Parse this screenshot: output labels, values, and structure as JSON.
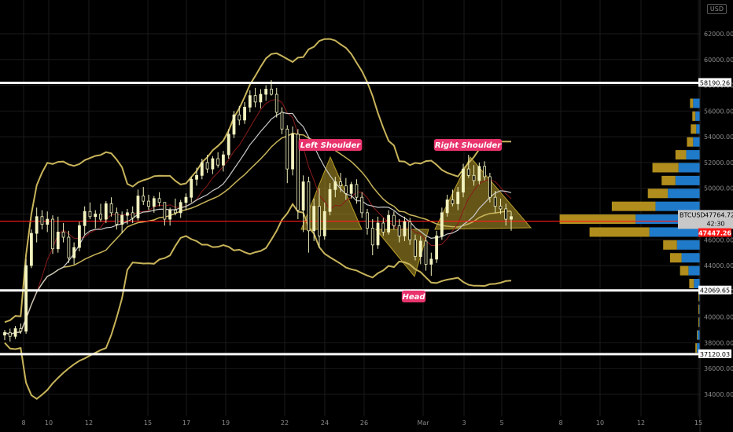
{
  "symbol": "BTCUSD",
  "currency_badge": "USD",
  "colors": {
    "background": "#000000",
    "candle": "#f3f3c0",
    "bollinger": "#c8b45a",
    "ma_fast": "#8b1a1a",
    "ma_slow": "#c8c8c8",
    "horizontal_level": "#ffffff",
    "current_price_line": "#ff1a1a",
    "pattern_fill": "#b89c2a",
    "annotation_bg": "#e8336d",
    "vp_blue": "#1f7ac9",
    "vp_gold": "#b08d1c"
  },
  "chart_data": {
    "type": "candlestick",
    "symbol": "BTCUSD",
    "ylim": [
      33000,
      63500
    ],
    "y_ticks": [
      "34000.00",
      "36000.00",
      "38000.00",
      "40000.00",
      "42000.00",
      "44000.00",
      "46000.00",
      "48000.00",
      "50000.00",
      "52000.00",
      "54000.00",
      "56000.00",
      "58000.00",
      "60000.00",
      "62000.00"
    ],
    "x_ticks": [
      "8",
      "10",
      "12",
      "15",
      "17",
      "19",
      "22",
      "24",
      "26",
      "Mar",
      "3",
      "5",
      "8",
      "10",
      "12",
      "15"
    ],
    "horizontal_levels": [
      {
        "price": 58190.26,
        "label": "58190.26"
      },
      {
        "price": 42069.65,
        "label": "42069.65"
      },
      {
        "price": 37120.03,
        "label": "37120.03"
      }
    ],
    "current_price": {
      "price": 47764.72,
      "label": "47764.72",
      "countdown": "42:30",
      "symbol": "BTCUSD"
    },
    "red_level": {
      "price": 47447.26,
      "label": "47447.26"
    },
    "annotations": [
      {
        "text": "Left Shoulder"
      },
      {
        "text": "Head"
      },
      {
        "text": "Right Shoulder"
      }
    ],
    "candles": [
      [
        38600,
        39000,
        38200,
        38800
      ],
      [
        38800,
        39100,
        38100,
        38500
      ],
      [
        38500,
        39300,
        38300,
        39100
      ],
      [
        39100,
        39500,
        38700,
        38900
      ],
      [
        38900,
        44500,
        38700,
        44000
      ],
      [
        44000,
        46800,
        43800,
        46500
      ],
      [
        46500,
        48500,
        45800,
        47800
      ],
      [
        47800,
        48300,
        46800,
        47200
      ],
      [
        47200,
        48200,
        46600,
        47600
      ],
      [
        47600,
        47900,
        44900,
        45300
      ],
      [
        45300,
        47800,
        45000,
        46600
      ],
      [
        46600,
        47300,
        45800,
        46200
      ],
      [
        46200,
        46700,
        44200,
        44600
      ],
      [
        44600,
        45800,
        44100,
        45400
      ],
      [
        45400,
        47400,
        45100,
        47100
      ],
      [
        47100,
        48600,
        46400,
        48200
      ],
      [
        48200,
        48900,
        47600,
        47800
      ],
      [
        47800,
        48300,
        46900,
        48000
      ],
      [
        48000,
        48800,
        47400,
        47600
      ],
      [
        47600,
        49000,
        47300,
        48800
      ],
      [
        48800,
        49300,
        47800,
        48100
      ],
      [
        48100,
        48500,
        46800,
        47200
      ],
      [
        47200,
        48200,
        46500,
        47900
      ],
      [
        47900,
        48400,
        47200,
        48100
      ],
      [
        48100,
        48600,
        47300,
        47700
      ],
      [
        47700,
        49900,
        47500,
        49400
      ],
      [
        49400,
        50100,
        48700,
        49000
      ],
      [
        49000,
        49500,
        48300,
        48600
      ],
      [
        48600,
        49400,
        48100,
        49200
      ],
      [
        49200,
        49700,
        48600,
        48900
      ],
      [
        48900,
        48600,
        47100,
        47600
      ],
      [
        47600,
        48500,
        47100,
        48300
      ],
      [
        48300,
        49200,
        47900,
        48100
      ],
      [
        48100,
        49100,
        47700,
        48900
      ],
      [
        48900,
        49600,
        48300,
        49300
      ],
      [
        49300,
        50900,
        48900,
        50700
      ],
      [
        50700,
        51600,
        50200,
        51000
      ],
      [
        51000,
        52300,
        50700,
        52000
      ],
      [
        52000,
        52600,
        51200,
        51500
      ],
      [
        51500,
        52500,
        51100,
        52300
      ],
      [
        52300,
        52800,
        51600,
        51800
      ],
      [
        51800,
        52900,
        51300,
        52600
      ],
      [
        52600,
        54600,
        52300,
        54200
      ],
      [
        54200,
        56000,
        53900,
        55700
      ],
      [
        55700,
        56400,
        54900,
        55300
      ],
      [
        55300,
        56700,
        55000,
        56300
      ],
      [
        56300,
        57600,
        55900,
        57200
      ],
      [
        57200,
        57800,
        56300,
        56700
      ],
      [
        56700,
        57700,
        56200,
        57300
      ],
      [
        57300,
        58000,
        56800,
        57700
      ],
      [
        57700,
        58400,
        57200,
        57300
      ],
      [
        57300,
        57800,
        55500,
        55900
      ],
      [
        55900,
        56300,
        54200,
        54600
      ],
      [
        54600,
        54900,
        50400,
        51500
      ],
      [
        51500,
        54800,
        51000,
        54200
      ],
      [
        54200,
        54600,
        47600,
        48300
      ],
      [
        48300,
        51000,
        46600,
        50500
      ],
      [
        50500,
        50900,
        45000,
        46700
      ],
      [
        46700,
        49200,
        45900,
        48600
      ],
      [
        48600,
        50000,
        45400,
        46300
      ],
      [
        46300,
        48900,
        46000,
        48200
      ],
      [
        48200,
        50400,
        47900,
        49900
      ],
      [
        49900,
        50900,
        49300,
        50500
      ],
      [
        50500,
        51200,
        49700,
        50200
      ],
      [
        50200,
        50800,
        49100,
        49600
      ],
      [
        49600,
        50500,
        49200,
        50300
      ],
      [
        50300,
        50700,
        48800,
        49300
      ],
      [
        49300,
        49700,
        47700,
        48100
      ],
      [
        48100,
        48400,
        46400,
        46900
      ],
      [
        46900,
        47600,
        44800,
        45600
      ],
      [
        45600,
        47800,
        45300,
        47300
      ],
      [
        47300,
        47700,
        46300,
        46600
      ],
      [
        46600,
        48300,
        46400,
        47900
      ],
      [
        47900,
        48200,
        46800,
        47100
      ],
      [
        47100,
        47600,
        45800,
        46300
      ],
      [
        46300,
        47800,
        45900,
        47400
      ],
      [
        47400,
        47700,
        45600,
        46000
      ],
      [
        46000,
        46400,
        44400,
        44700
      ],
      [
        44700,
        46300,
        44100,
        45900
      ],
      [
        45900,
        46200,
        43600,
        44100
      ],
      [
        44100,
        45000,
        43200,
        44500
      ],
      [
        44500,
        46700,
        44200,
        46300
      ],
      [
        46300,
        48500,
        46000,
        48100
      ],
      [
        48100,
        49500,
        47800,
        49100
      ],
      [
        49100,
        49900,
        48600,
        48800
      ],
      [
        48800,
        50100,
        48300,
        49700
      ],
      [
        49700,
        51900,
        49300,
        51500
      ],
      [
        51500,
        52600,
        50800,
        51000
      ],
      [
        51000,
        51800,
        50200,
        50600
      ],
      [
        50600,
        52000,
        50300,
        51700
      ],
      [
        51700,
        52100,
        50600,
        50900
      ],
      [
        50900,
        51200,
        48900,
        49300
      ],
      [
        49300,
        49800,
        48100,
        48600
      ],
      [
        48600,
        49200,
        48000,
        48400
      ],
      [
        48400,
        48800,
        47100,
        47600
      ],
      [
        47600,
        48200,
        46700,
        47800
      ]
    ],
    "volume_profile": [
      {
        "price": 56600,
        "buy": 0.09,
        "sell": 0.04
      },
      {
        "price": 55600,
        "buy": 0.06,
        "sell": 0.04
      },
      {
        "price": 54600,
        "buy": 0.05,
        "sell": 0.07
      },
      {
        "price": 53600,
        "buy": 0.09,
        "sell": 0.08
      },
      {
        "price": 52600,
        "buy": 0.18,
        "sell": 0.14
      },
      {
        "price": 51600,
        "buy": 0.28,
        "sell": 0.34
      },
      {
        "price": 50600,
        "buy": 0.32,
        "sell": 0.18
      },
      {
        "price": 49600,
        "buy": 0.42,
        "sell": 0.26
      },
      {
        "price": 48600,
        "buy": 0.58,
        "sell": 0.57
      },
      {
        "price": 47600,
        "buy": 0.84,
        "sell": 0.99
      },
      {
        "price": 46600,
        "buy": 0.66,
        "sell": 0.78
      },
      {
        "price": 45600,
        "buy": 0.3,
        "sell": 0.18
      },
      {
        "price": 44600,
        "buy": 0.24,
        "sell": 0.15
      },
      {
        "price": 43600,
        "buy": 0.15,
        "sell": 0.11
      },
      {
        "price": 42600,
        "buy": 0.08,
        "sell": 0.06
      },
      {
        "price": 41600,
        "buy": 0.01,
        "sell": 0.01
      },
      {
        "price": 40600,
        "buy": 0.01,
        "sell": 0.01
      },
      {
        "price": 39600,
        "buy": 0.01,
        "sell": 0.01
      },
      {
        "price": 38600,
        "buy": 0.03,
        "sell": 0.01
      },
      {
        "price": 37600,
        "buy": 0.04,
        "sell": 0.02
      }
    ]
  }
}
